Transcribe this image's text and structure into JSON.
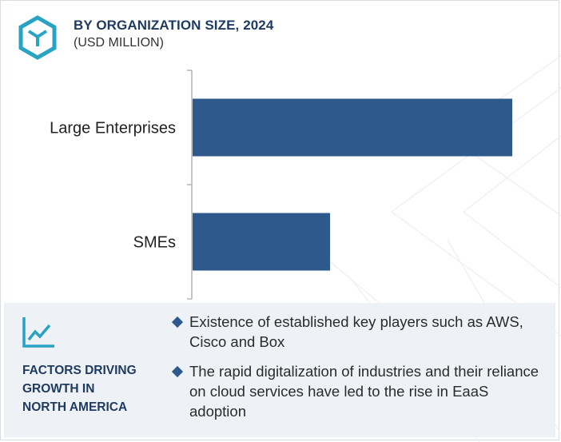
{
  "header": {
    "title": "BY ORGANIZATION SIZE, 2024",
    "subtitle": "(USD MILLION)"
  },
  "colors": {
    "bar": "#2d5a8a",
    "accent": "#29a3c4",
    "heading": "#1f3a5f",
    "panel": "#eef1f5"
  },
  "chart_data": {
    "type": "bar",
    "orientation": "horizontal",
    "title": "BY ORGANIZATION SIZE, 2024",
    "subtitle": "(USD MILLION)",
    "categories": [
      "Large Enterprises",
      "SMEs"
    ],
    "values": [
      100,
      43
    ],
    "xlim": [
      0,
      100
    ],
    "grid": false
  },
  "panel": {
    "heading": [
      "FACTORS DRIVING",
      "GROWTH IN",
      "NORTH AMERICA"
    ],
    "icon": "trend-chart-icon",
    "bullets": [
      "Existence of established key players such as AWS, Cisco and Box",
      "The rapid digitalization of industries and their reliance on cloud services have led to the rise in EaaS adoption"
    ]
  },
  "logo": {
    "icon": "hexagon-cube-logo"
  }
}
